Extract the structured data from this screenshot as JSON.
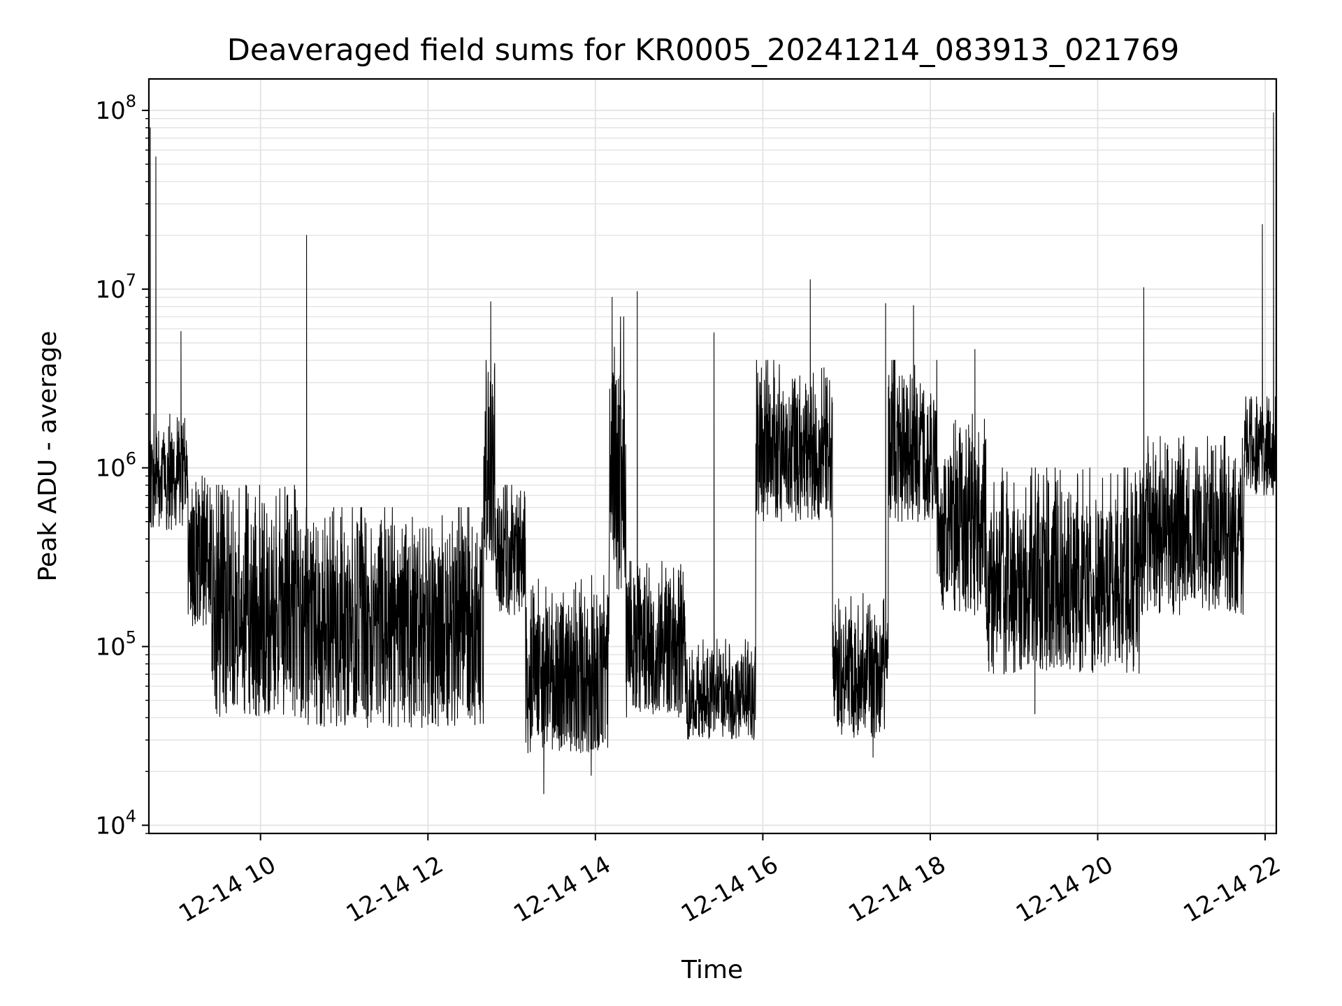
{
  "chart_data": {
    "type": "line",
    "title": "Deaveraged field sums for KR0005_20241214_083913_021769",
    "xlabel": "Time",
    "ylabel": "Peak ADU - average",
    "x_axis": {
      "kind": "time",
      "range": [
        "2024-12-14 08:40",
        "2024-12-14 22:08"
      ],
      "ticks": [
        {
          "time": "2024-12-14 10:00",
          "label": "12-14 10"
        },
        {
          "time": "2024-12-14 12:00",
          "label": "12-14 12"
        },
        {
          "time": "2024-12-14 14:00",
          "label": "12-14 14"
        },
        {
          "time": "2024-12-14 16:00",
          "label": "12-14 16"
        },
        {
          "time": "2024-12-14 18:00",
          "label": "12-14 18"
        },
        {
          "time": "2024-12-14 20:00",
          "label": "12-14 20"
        },
        {
          "time": "2024-12-14 22:00",
          "label": "12-14 22"
        }
      ],
      "tick_label_rotation": -30
    },
    "y_axis": {
      "scale": "log",
      "range": [
        9000,
        150000000
      ],
      "ticks": [
        {
          "value": 10000,
          "base": "10",
          "exp": "4"
        },
        {
          "value": 100000,
          "base": "10",
          "exp": "5"
        },
        {
          "value": 1000000,
          "base": "10",
          "exp": "6"
        },
        {
          "value": 10000000,
          "base": "10",
          "exp": "7"
        },
        {
          "value": 100000000,
          "base": "10",
          "exp": "8"
        }
      ]
    },
    "grid": true,
    "line_color": "#000000",
    "grid_color": "#e3e3e3",
    "series": [
      {
        "segments": [
          {
            "start": "2024-12-14 08:40",
            "end": "2024-12-14 09:08",
            "low": 450000,
            "high": 2000000
          },
          {
            "start": "2024-12-14 09:08",
            "end": "2024-12-14 09:25",
            "low": 130000,
            "high": 900000
          },
          {
            "start": "2024-12-14 09:25",
            "end": "2024-12-14 10:30",
            "low": 40000,
            "high": 800000
          },
          {
            "start": "2024-12-14 10:30",
            "end": "2024-12-14 12:40",
            "low": 35000,
            "high": 600000
          },
          {
            "start": "2024-12-14 12:40",
            "end": "2024-12-14 12:48",
            "low": 300000,
            "high": 4000000
          },
          {
            "start": "2024-12-14 12:48",
            "end": "2024-12-14 13:10",
            "low": 150000,
            "high": 800000
          },
          {
            "start": "2024-12-14 13:10",
            "end": "2024-12-14 14:10",
            "low": 25000,
            "high": 250000
          },
          {
            "start": "2024-12-14 14:10",
            "end": "2024-12-14 14:22",
            "low": 200000,
            "high": 7000000
          },
          {
            "start": "2024-12-14 14:22",
            "end": "2024-12-14 15:05",
            "low": 40000,
            "high": 300000
          },
          {
            "start": "2024-12-14 15:05",
            "end": "2024-12-14 15:55",
            "low": 30000,
            "high": 110000
          },
          {
            "start": "2024-12-14 15:55",
            "end": "2024-12-14 16:50",
            "low": 500000,
            "high": 4000000
          },
          {
            "start": "2024-12-14 16:50",
            "end": "2024-12-14 17:30",
            "low": 30000,
            "high": 200000
          },
          {
            "start": "2024-12-14 17:30",
            "end": "2024-12-14 18:05",
            "low": 500000,
            "high": 4000000
          },
          {
            "start": "2024-12-14 18:05",
            "end": "2024-12-14 18:40",
            "low": 150000,
            "high": 2000000
          },
          {
            "start": "2024-12-14 18:40",
            "end": "2024-12-14 20:30",
            "low": 70000,
            "high": 1000000
          },
          {
            "start": "2024-12-14 20:30",
            "end": "2024-12-14 21:45",
            "low": 150000,
            "high": 1500000
          },
          {
            "start": "2024-12-14 21:45",
            "end": "2024-12-14 22:08",
            "low": 700000,
            "high": 2500000
          }
        ],
        "spikes": [
          {
            "time": "2024-12-14 08:41",
            "value": 80000000
          },
          {
            "time": "2024-12-14 08:45",
            "value": 55000000
          },
          {
            "time": "2024-12-14 09:03",
            "value": 5800000
          },
          {
            "time": "2024-12-14 10:33",
            "value": 20000000
          },
          {
            "time": "2024-12-14 12:45",
            "value": 8500000
          },
          {
            "time": "2024-12-14 14:12",
            "value": 9000000
          },
          {
            "time": "2024-12-14 14:30",
            "value": 9700000
          },
          {
            "time": "2024-12-14 15:25",
            "value": 5700000
          },
          {
            "time": "2024-12-14 16:34",
            "value": 11300000
          },
          {
            "time": "2024-12-14 17:28",
            "value": 8300000
          },
          {
            "time": "2024-12-14 17:48",
            "value": 8100000
          },
          {
            "time": "2024-12-14 18:32",
            "value": 4600000
          },
          {
            "time": "2024-12-14 20:33",
            "value": 10200000
          },
          {
            "time": "2024-12-14 21:58",
            "value": 23000000
          },
          {
            "time": "2024-12-14 22:06",
            "value": 97000000
          },
          {
            "time": "2024-12-14 13:23",
            "value": 15000
          },
          {
            "time": "2024-12-14 13:57",
            "value": 19000
          },
          {
            "time": "2024-12-14 17:19",
            "value": 24000
          },
          {
            "time": "2024-12-14 19:15",
            "value": 42000
          }
        ]
      }
    ]
  }
}
